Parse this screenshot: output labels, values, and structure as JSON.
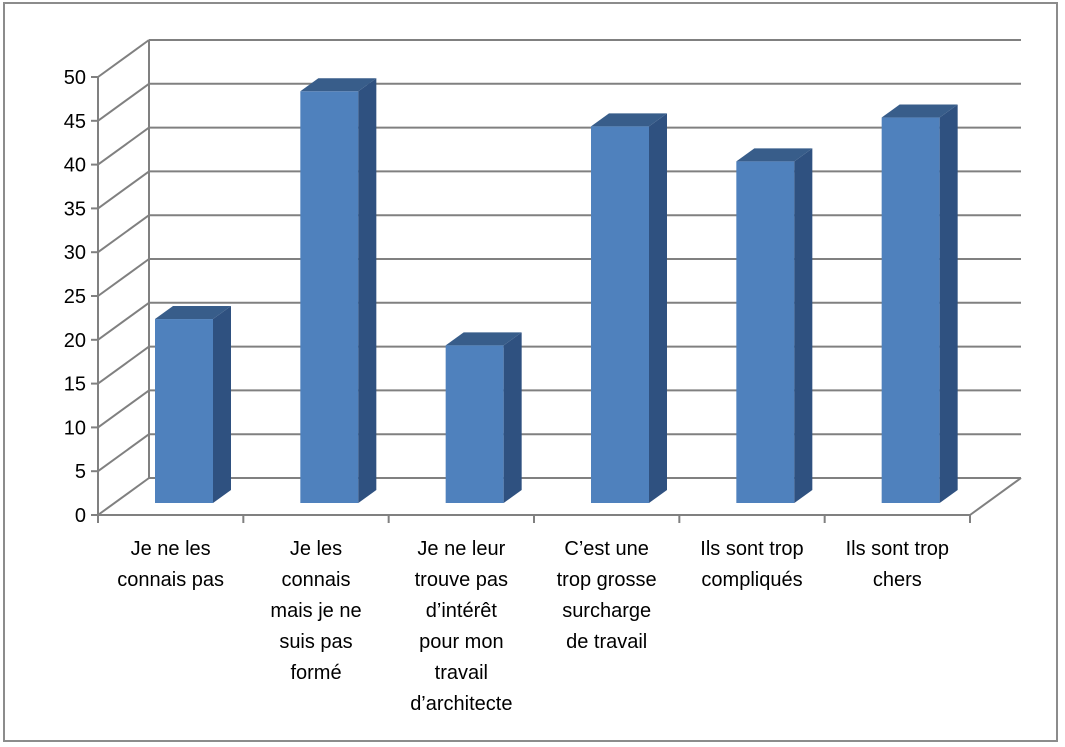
{
  "chart_data": {
    "type": "bar",
    "style": "3d-column",
    "categories": [
      "Je ne les\nconnais pas",
      "Je les\nconnais\nmais je ne\nsuis pas\nformé",
      "Je ne leur\ntrouve pas\nd’intérêt\npour mon\ntravail\nd’architecte",
      "C’est une\ntrop grosse\nsurcharge\nde travail",
      "Ils sont trop\ncompliqués",
      "Ils sont trop\nchers"
    ],
    "values": [
      21,
      47,
      18,
      43,
      39,
      44
    ],
    "ylim": [
      0,
      50
    ],
    "yticks": [
      "0",
      "5",
      "10",
      "15",
      "20",
      "25",
      "30",
      "35",
      "40",
      "45",
      "50"
    ],
    "grid": true,
    "legend": "none",
    "colors": {
      "front": "#4f81bd",
      "side": "#2f5180",
      "top": "#385d8a",
      "grid": "#808080"
    }
  }
}
